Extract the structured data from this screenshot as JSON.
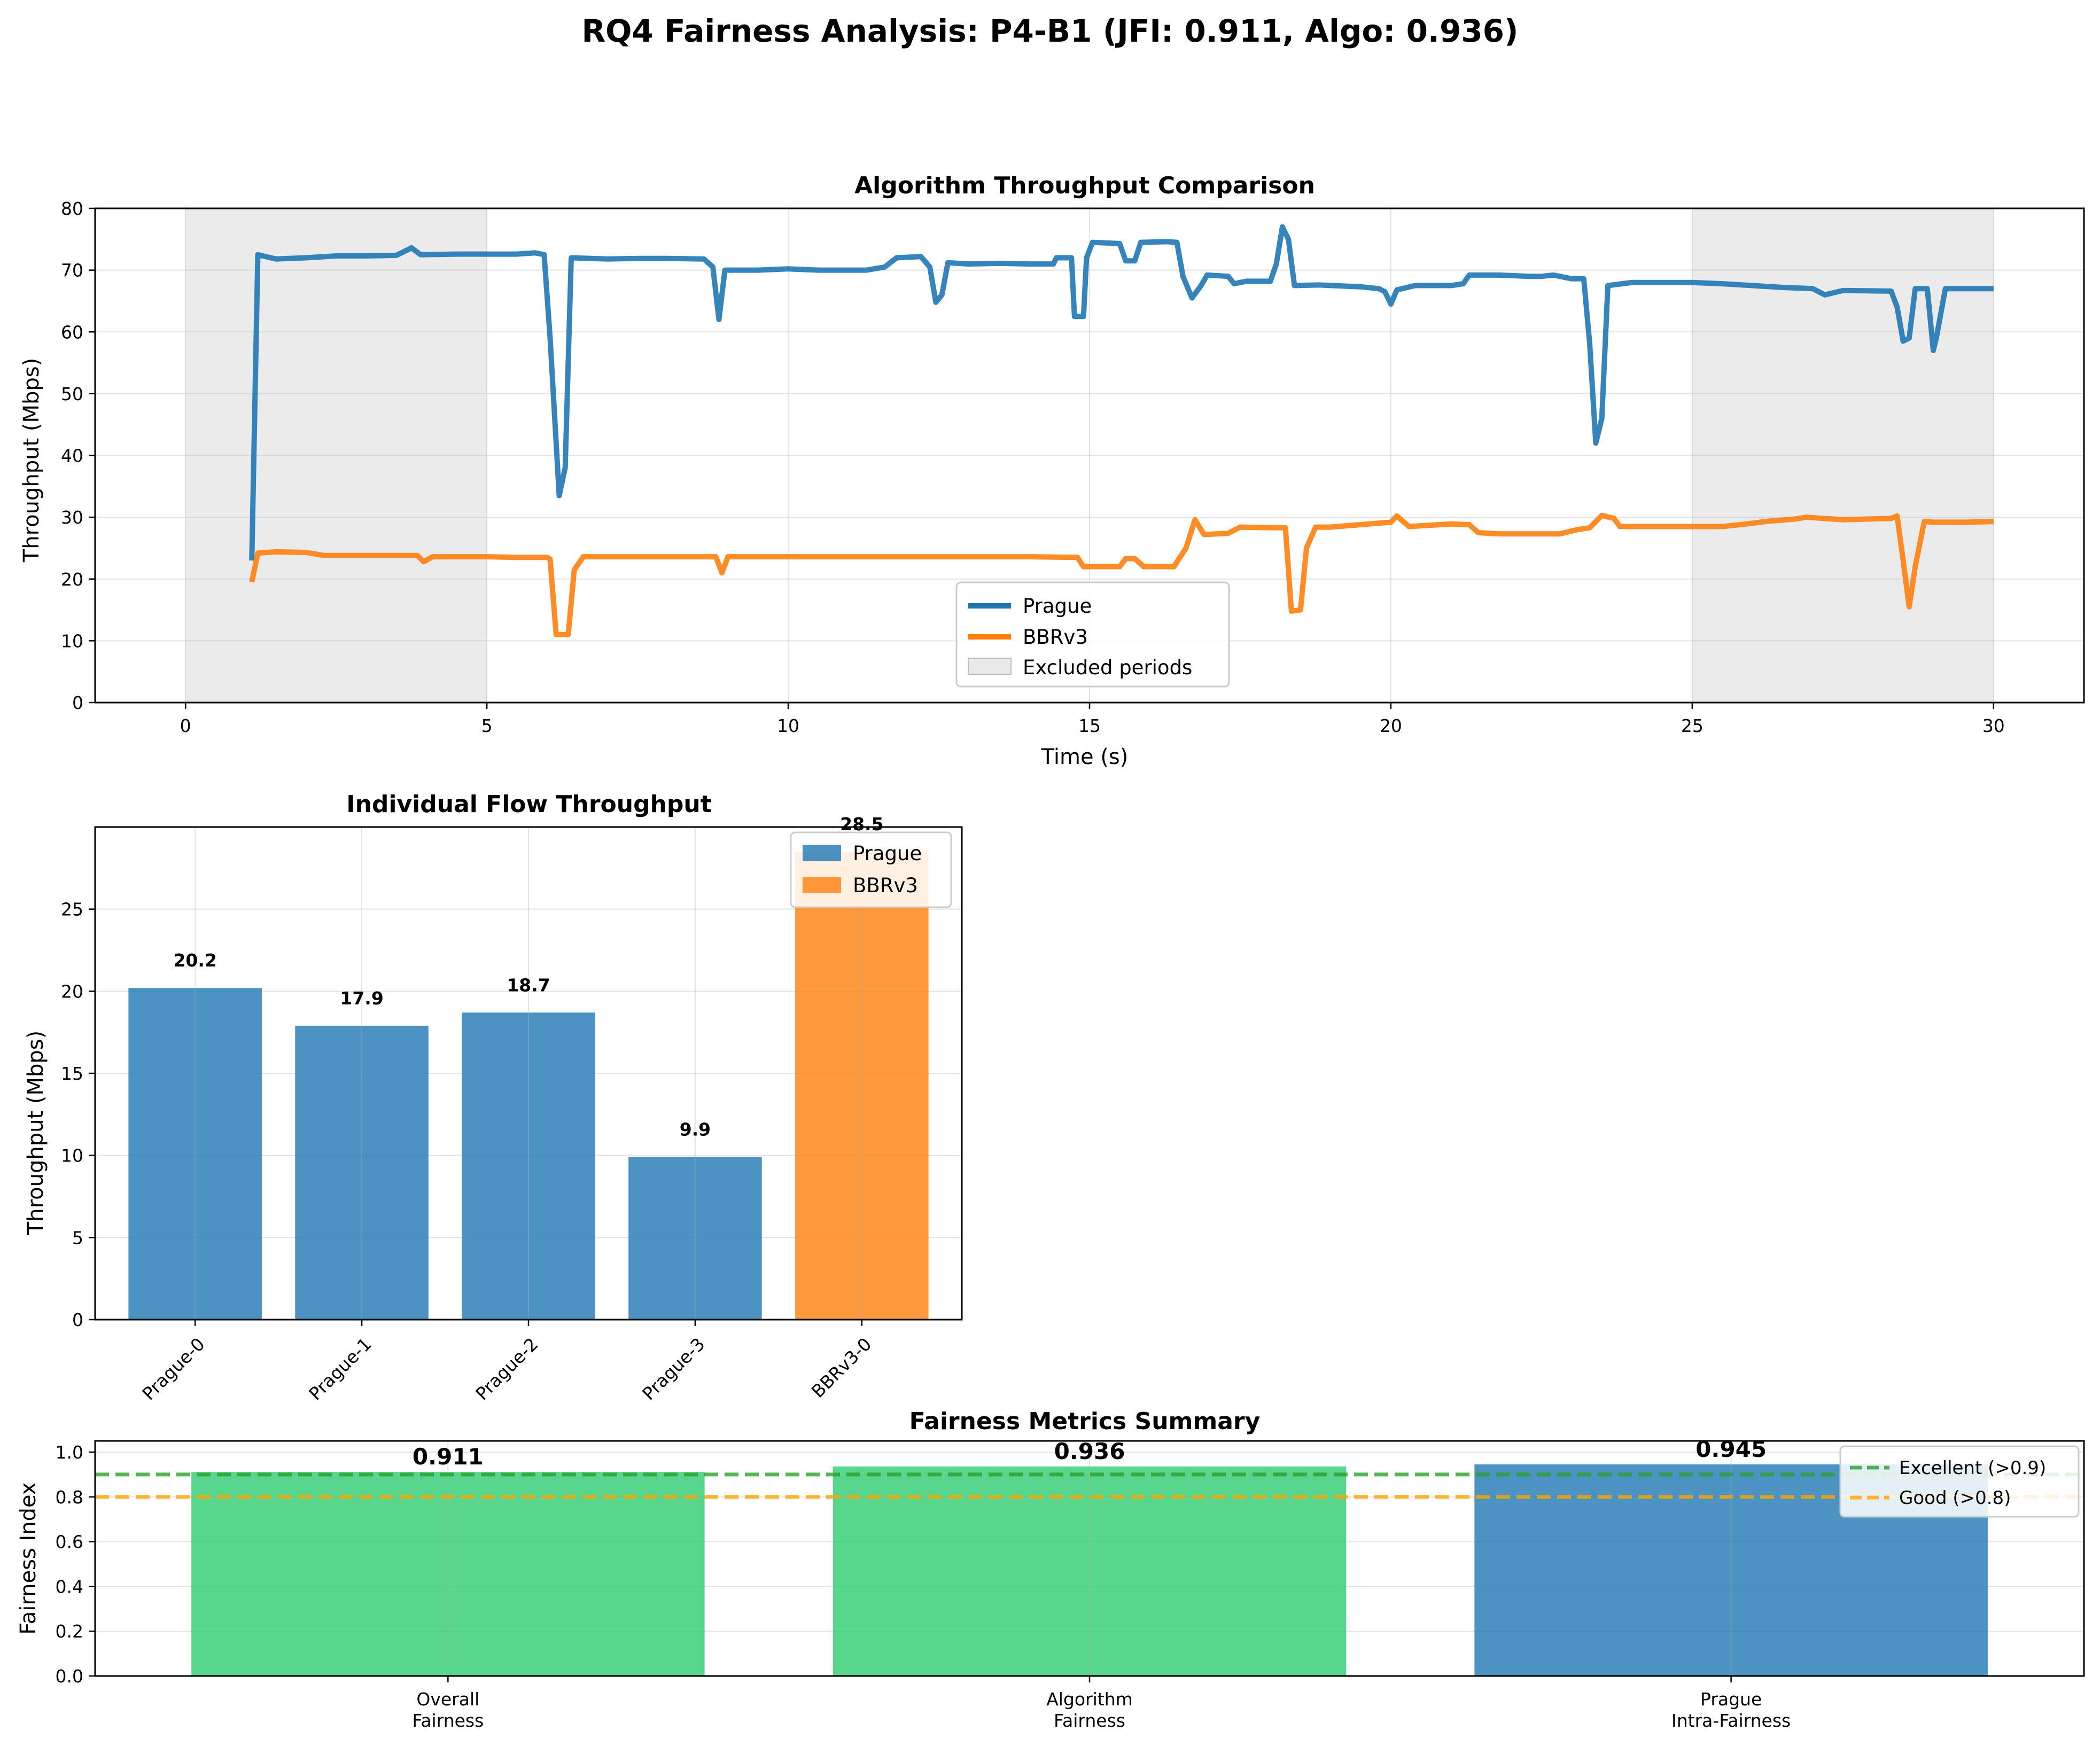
{
  "figure": {
    "title": "RQ4 Fairness Analysis: P4-B1 (JFI: 0.911, Algo: 0.936)"
  },
  "colors": {
    "prague": "#1f77b4",
    "bbr": "#ff7f0e",
    "excellent": "#2ca02c",
    "good": "#ffa500",
    "green_bar": "#2ecc71",
    "excluded": "#d3d3d3"
  },
  "chart_data": [
    {
      "type": "line",
      "title": "Algorithm Throughput Comparison",
      "xlabel": "Time (s)",
      "ylabel": "Throughput (Mbps)",
      "xlim": [
        -1.5,
        31.5
      ],
      "ylim": [
        0,
        80
      ],
      "xticks": [
        0,
        5,
        10,
        15,
        20,
        25,
        30
      ],
      "yticks": [
        0,
        10,
        20,
        30,
        40,
        50,
        60,
        70,
        80
      ],
      "grid": true,
      "legend": "lower-center",
      "excluded_periods": [
        [
          0,
          5
        ],
        [
          25,
          30
        ]
      ],
      "legend_excluded": "Excluded periods",
      "series": [
        {
          "name": "Prague",
          "points": [
            [
              1.1,
              23
            ],
            [
              1.2,
              72.5
            ],
            [
              1.5,
              71.8
            ],
            [
              2.0,
              72.0
            ],
            [
              2.5,
              72.3
            ],
            [
              3.0,
              72.3
            ],
            [
              3.5,
              72.4
            ],
            [
              3.75,
              73.6
            ],
            [
              3.9,
              72.5
            ],
            [
              4.5,
              72.6
            ],
            [
              5.0,
              72.6
            ],
            [
              5.5,
              72.6
            ],
            [
              5.8,
              72.8
            ],
            [
              5.95,
              72.5
            ],
            [
              6.05,
              59
            ],
            [
              6.2,
              33.5
            ],
            [
              6.3,
              38
            ],
            [
              6.4,
              72
            ],
            [
              7.0,
              71.8
            ],
            [
              7.5,
              71.9
            ],
            [
              8.0,
              71.9
            ],
            [
              8.6,
              71.8
            ],
            [
              8.75,
              70.5
            ],
            [
              8.85,
              62
            ],
            [
              8.95,
              70
            ],
            [
              9.5,
              70
            ],
            [
              10.0,
              70.2
            ],
            [
              10.5,
              70
            ],
            [
              11.0,
              70
            ],
            [
              11.3,
              70
            ],
            [
              11.6,
              70.5
            ],
            [
              11.8,
              72
            ],
            [
              12.2,
              72.2
            ],
            [
              12.35,
              70.5
            ],
            [
              12.45,
              64.8
            ],
            [
              12.55,
              66
            ],
            [
              12.65,
              71.2
            ],
            [
              13.0,
              71
            ],
            [
              13.5,
              71.1
            ],
            [
              14.0,
              71
            ],
            [
              14.4,
              71
            ],
            [
              14.45,
              72
            ],
            [
              14.7,
              72
            ],
            [
              14.75,
              62.5
            ],
            [
              14.9,
              62.5
            ],
            [
              14.95,
              72
            ],
            [
              15.05,
              74.5
            ],
            [
              15.5,
              74.3
            ],
            [
              15.6,
              71.5
            ],
            [
              15.75,
              71.5
            ],
            [
              15.85,
              74.5
            ],
            [
              16.3,
              74.6
            ],
            [
              16.45,
              74.5
            ],
            [
              16.55,
              69
            ],
            [
              16.7,
              65.5
            ],
            [
              16.85,
              67.5
            ],
            [
              16.95,
              69.2
            ],
            [
              17.3,
              69
            ],
            [
              17.4,
              67.8
            ],
            [
              17.6,
              68.2
            ],
            [
              18.0,
              68.2
            ],
            [
              18.1,
              71
            ],
            [
              18.2,
              77
            ],
            [
              18.3,
              75
            ],
            [
              18.4,
              67.5
            ],
            [
              18.8,
              67.6
            ],
            [
              19.5,
              67.3
            ],
            [
              19.8,
              67
            ],
            [
              19.9,
              66.5
            ],
            [
              20.0,
              64.5
            ],
            [
              20.1,
              66.8
            ],
            [
              20.4,
              67.5
            ],
            [
              21.0,
              67.5
            ],
            [
              21.2,
              67.8
            ],
            [
              21.3,
              69.2
            ],
            [
              21.8,
              69.2
            ],
            [
              22.3,
              69
            ],
            [
              22.5,
              69
            ],
            [
              22.7,
              69.2
            ],
            [
              23.0,
              68.6
            ],
            [
              23.2,
              68.6
            ],
            [
              23.3,
              58
            ],
            [
              23.4,
              42
            ],
            [
              23.5,
              46
            ],
            [
              23.6,
              67.5
            ],
            [
              24.0,
              68
            ],
            [
              24.5,
              68
            ],
            [
              25.0,
              68
            ],
            [
              25.5,
              67.8
            ],
            [
              26.0,
              67.5
            ],
            [
              26.5,
              67.2
            ],
            [
              27.0,
              67
            ],
            [
              27.2,
              66
            ],
            [
              27.5,
              66.7
            ],
            [
              28.3,
              66.6
            ],
            [
              28.4,
              64
            ],
            [
              28.5,
              58.5
            ],
            [
              28.6,
              59
            ],
            [
              28.7,
              67
            ],
            [
              28.9,
              67
            ],
            [
              29.0,
              57
            ],
            [
              29.05,
              59
            ],
            [
              29.2,
              67
            ],
            [
              29.6,
              67
            ],
            [
              30.0,
              67
            ]
          ]
        },
        {
          "name": "BBRv3",
          "points": [
            [
              1.1,
              19.5
            ],
            [
              1.2,
              24.2
            ],
            [
              1.5,
              24.4
            ],
            [
              2.0,
              24.3
            ],
            [
              2.3,
              23.8
            ],
            [
              3.0,
              23.8
            ],
            [
              3.5,
              23.8
            ],
            [
              3.85,
              23.8
            ],
            [
              3.95,
              22.8
            ],
            [
              4.1,
              23.6
            ],
            [
              5.0,
              23.6
            ],
            [
              5.5,
              23.5
            ],
            [
              6.0,
              23.5
            ],
            [
              6.05,
              23.2
            ],
            [
              6.15,
              11
            ],
            [
              6.35,
              11
            ],
            [
              6.45,
              21.5
            ],
            [
              6.6,
              23.6
            ],
            [
              7.5,
              23.6
            ],
            [
              8.0,
              23.6
            ],
            [
              8.8,
              23.6
            ],
            [
              8.9,
              21
            ],
            [
              9.0,
              23.6
            ],
            [
              9.5,
              23.6
            ],
            [
              10.0,
              23.6
            ],
            [
              10.5,
              23.6
            ],
            [
              11.0,
              23.6
            ],
            [
              12.0,
              23.6
            ],
            [
              13.0,
              23.6
            ],
            [
              14.0,
              23.6
            ],
            [
              14.8,
              23.5
            ],
            [
              14.9,
              22
            ],
            [
              15.5,
              22
            ],
            [
              15.6,
              23.3
            ],
            [
              15.75,
              23.3
            ],
            [
              15.9,
              22
            ],
            [
              16.4,
              22
            ],
            [
              16.6,
              25
            ],
            [
              16.75,
              29.6
            ],
            [
              16.9,
              27.2
            ],
            [
              17.3,
              27.4
            ],
            [
              17.5,
              28.4
            ],
            [
              18.0,
              28.3
            ],
            [
              18.25,
              28.3
            ],
            [
              18.35,
              14.8
            ],
            [
              18.5,
              15
            ],
            [
              18.6,
              25
            ],
            [
              18.75,
              28.4
            ],
            [
              19.0,
              28.4
            ],
            [
              19.5,
              28.8
            ],
            [
              20.0,
              29.2
            ],
            [
              20.1,
              30.2
            ],
            [
              20.3,
              28.5
            ],
            [
              21.0,
              28.9
            ],
            [
              21.3,
              28.8
            ],
            [
              21.45,
              27.5
            ],
            [
              21.8,
              27.3
            ],
            [
              22.3,
              27.3
            ],
            [
              22.8,
              27.3
            ],
            [
              23.1,
              28
            ],
            [
              23.3,
              28.3
            ],
            [
              23.5,
              30.3
            ],
            [
              23.7,
              29.8
            ],
            [
              23.8,
              28.5
            ],
            [
              24.5,
              28.5
            ],
            [
              25.0,
              28.5
            ],
            [
              25.5,
              28.5
            ],
            [
              25.8,
              28.8
            ],
            [
              26.3,
              29.4
            ],
            [
              26.7,
              29.7
            ],
            [
              26.9,
              30
            ],
            [
              27.5,
              29.6
            ],
            [
              28.3,
              29.8
            ],
            [
              28.4,
              30.2
            ],
            [
              28.5,
              23
            ],
            [
              28.6,
              15.5
            ],
            [
              28.7,
              22
            ],
            [
              28.85,
              29.3
            ],
            [
              29.0,
              29.2
            ],
            [
              29.5,
              29.2
            ],
            [
              30.0,
              29.3
            ]
          ]
        }
      ]
    },
    {
      "type": "bar",
      "title": "Individual Flow Throughput",
      "ylabel": "Throughput (Mbps)",
      "ylim": [
        0,
        30
      ],
      "yticks": [
        0,
        5,
        10,
        15,
        20,
        25
      ],
      "grid": true,
      "legend": "top-right",
      "categories": [
        "Prague-0",
        "Prague-1",
        "Prague-2",
        "Prague-3",
        "BBRv3-0"
      ],
      "values": [
        20.2,
        17.9,
        18.7,
        9.9,
        28.5
      ],
      "labels": [
        "20.2",
        "17.9",
        "18.7",
        "9.9",
        "28.5"
      ],
      "bar_series": [
        "prague",
        "prague",
        "prague",
        "prague",
        "bbr"
      ],
      "legend_entries": [
        "Prague",
        "BBRv3"
      ]
    },
    {
      "type": "bar",
      "title": "Fairness Metrics Summary",
      "ylabel": "Fairness Index",
      "ylim": [
        0,
        1.05
      ],
      "yticks": [
        "0.0",
        "0.2",
        "0.4",
        "0.6",
        "0.8",
        "1.0"
      ],
      "grid": true,
      "legend": "top-right",
      "categories": [
        [
          "Overall",
          "Fairness"
        ],
        [
          "Algorithm",
          "Fairness"
        ],
        [
          "Prague",
          "Intra-Fairness"
        ]
      ],
      "values": [
        0.911,
        0.936,
        0.945
      ],
      "labels": [
        "0.911",
        "0.936",
        "0.945"
      ],
      "bar_colors": [
        "green_bar",
        "green_bar",
        "prague"
      ],
      "thresholds": [
        {
          "name": "Excellent (>0.9)",
          "value": 0.9,
          "color": "excellent"
        },
        {
          "name": "Good (>0.8)",
          "value": 0.8,
          "color": "good"
        }
      ]
    }
  ]
}
